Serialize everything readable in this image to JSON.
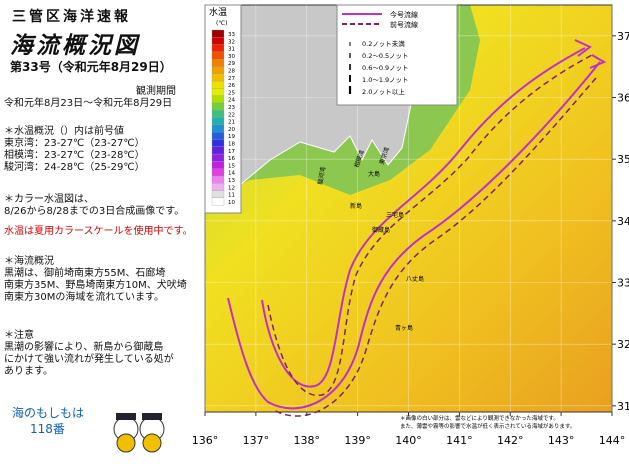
{
  "header": {
    "title": "三管区海洋速報",
    "subtitle": "海流概況図",
    "issue": "第33号（令和元年8月29日）",
    "period_label": "観測期間",
    "period": "令和元年8月23日～令和元年8月29日"
  },
  "temperature": {
    "heading": "＊水温概況（）内は前号値",
    "lines": [
      "東京湾：23-27℃（23-27℃）",
      "相模湾：23-27℃（23-28℃）",
      "駿河湾：24-28℃（25-29℃）"
    ]
  },
  "image_note": {
    "heading": "＊カラー水温図は、",
    "lines": [
      "8/26から8/28までの3日合成画像です。"
    ],
    "notice": "水温は夏用カラースケールを使用中です。"
  },
  "current": {
    "heading": "＊海流概況",
    "lines": [
      "黒潮は、御前埼南東方55M、石廊埼",
      "南東方35M、野島埼南東方10M、犬吠埼",
      "南東方30Mの海域を流れています。"
    ]
  },
  "caution": {
    "heading": "＊注意",
    "lines": [
      "黒潮の影響により、新島から御蔵島",
      "にかけて強い流れが発生している処が",
      "あります。"
    ]
  },
  "footer": {
    "hotline": "海のもしもは",
    "number": "118番"
  },
  "map": {
    "xlim": [
      136,
      144
    ],
    "ylim": [
      30.9,
      37.5
    ],
    "xticks": [
      {
        "value": 136,
        "label": "136°"
      },
      {
        "value": 137,
        "label": "137°"
      },
      {
        "value": 138,
        "label": "138°"
      },
      {
        "value": 139,
        "label": "139°"
      },
      {
        "value": 140,
        "label": "140°"
      },
      {
        "value": 141,
        "label": "141°"
      },
      {
        "value": 142,
        "label": "142°"
      },
      {
        "value": 143,
        "label": "143°"
      },
      {
        "value": 144,
        "label": "144°"
      }
    ],
    "yticks": [
      31,
      32,
      33,
      34,
      35,
      36,
      37
    ],
    "color_scale": {
      "title": "水温",
      "unit": "(℃)",
      "ticks": [
        33,
        32,
        31,
        30,
        29,
        28,
        27,
        26,
        25,
        24,
        23,
        22,
        21,
        20,
        19,
        18,
        17,
        16,
        15,
        14,
        13,
        12,
        11,
        10
      ],
      "colors": [
        "#a00000",
        "#d00000",
        "#f02000",
        "#f05000",
        "#f08000",
        "#f0a000",
        "#f0c000",
        "#f0e000",
        "#e0f000",
        "#b0e000",
        "#70d040",
        "#40c080",
        "#20b0b0",
        "#2090d0",
        "#2060e0",
        "#3030e0",
        "#6020e0",
        "#9020e0",
        "#c020e0",
        "#e040e0",
        "#f080f0",
        "#f0b0f0",
        "#e0e0e0",
        "#ffffff"
      ]
    },
    "legend": {
      "lines": [
        {
          "name": "今号流線",
          "color": "#c030c8"
        },
        {
          "name": "前号流線",
          "color": "#802060"
        }
      ],
      "arrows": [
        "0.2ノット未満",
        "0.2～0.5ノット",
        "0.6～0.9ノット",
        "1.0～1.9ノット",
        "2.0ノット以上"
      ]
    },
    "places": [
      "東京湾",
      "相模湾",
      "駿河湾",
      "大島",
      "新島",
      "三宅島",
      "御蔵島",
      "八丈島",
      "青ヶ島"
    ],
    "note": [
      "＊画像の白い部分は、雲などにより観測できなかった海域です。",
      "また、薄雲や霧等の影響で水温が低く表示されている海域があります。"
    ]
  }
}
